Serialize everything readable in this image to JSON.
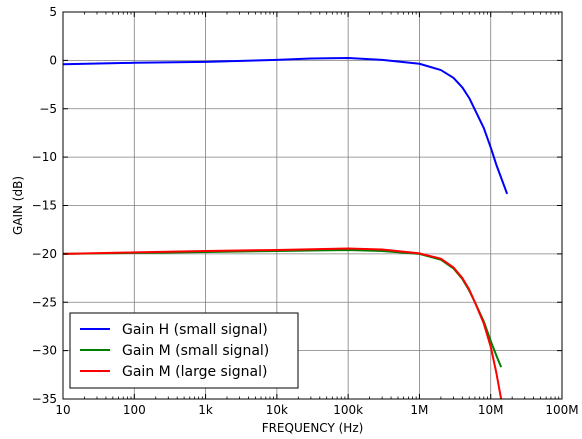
{
  "chart_data": {
    "type": "line",
    "title": "",
    "xlabel": "FREQUENCY (Hz)",
    "ylabel": "GAIN (dB)",
    "xscale": "log",
    "xlim": [
      10,
      100000000
    ],
    "ylim": [
      -35,
      5
    ],
    "xticks": [
      10,
      100,
      1000,
      10000,
      100000,
      1000000,
      10000000,
      100000000
    ],
    "xtick_labels": [
      "10",
      "100",
      "1k",
      "10k",
      "100k",
      "1M",
      "10M",
      "100M"
    ],
    "yticks": [
      5,
      0,
      -5,
      -10,
      -15,
      -20,
      -25,
      -30,
      -35
    ],
    "ytick_labels": [
      "5",
      "0",
      "−5",
      "−10",
      "−15",
      "−20",
      "−25",
      "−30",
      "−35"
    ],
    "grid": true,
    "legend_position": "bottom-left",
    "series": [
      {
        "name": "Gain H (small signal)",
        "color": "#0000ff",
        "x": [
          10,
          100,
          1000,
          10000,
          30000,
          100000,
          300000,
          1000000,
          2000000,
          3000000,
          4000000,
          5000000,
          6000000,
          8000000,
          10000000,
          12000000,
          17000000
        ],
        "y": [
          -0.4,
          -0.25,
          -0.15,
          0.05,
          0.2,
          0.25,
          0.05,
          -0.35,
          -1.0,
          -1.8,
          -2.8,
          -3.9,
          -5.1,
          -7.0,
          -9.0,
          -10.8,
          -13.8
        ]
      },
      {
        "name": "Gain M (small signal)",
        "color": "#008000",
        "x": [
          10,
          100,
          1000,
          10000,
          100000,
          300000,
          1000000,
          2000000,
          3000000,
          4000000,
          5000000,
          6000000,
          8000000,
          10000000,
          12000000,
          14000000
        ],
        "y": [
          -20.0,
          -19.9,
          -19.8,
          -19.7,
          -19.6,
          -19.7,
          -20.0,
          -20.6,
          -21.5,
          -22.6,
          -23.8,
          -25.0,
          -27.0,
          -29.0,
          -30.5,
          -31.7
        ]
      },
      {
        "name": "Gain M (large signal)",
        "color": "#ff0000",
        "x": [
          10,
          100,
          1000,
          10000,
          100000,
          300000,
          1000000,
          2000000,
          3000000,
          4000000,
          5000000,
          6000000,
          8000000,
          10000000,
          12000000,
          14000000
        ],
        "y": [
          -20.0,
          -19.85,
          -19.7,
          -19.6,
          -19.45,
          -19.55,
          -19.95,
          -20.5,
          -21.4,
          -22.5,
          -23.7,
          -25.0,
          -27.2,
          -29.6,
          -32.3,
          -35.0
        ]
      }
    ]
  }
}
